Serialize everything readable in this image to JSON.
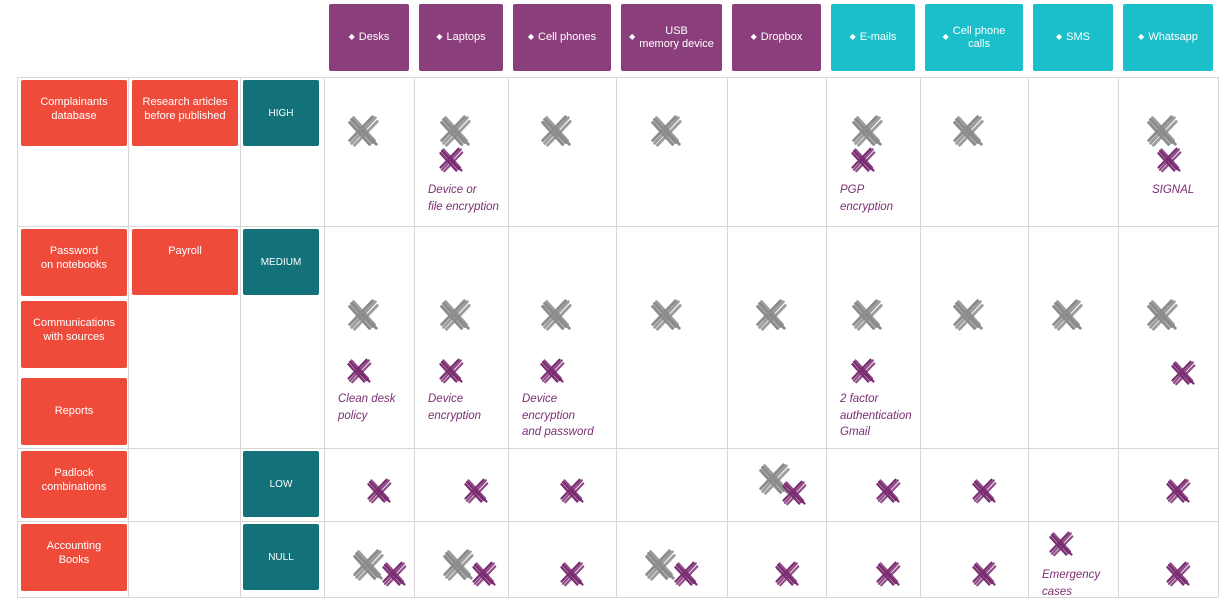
{
  "columns": [
    {
      "id": "desks",
      "label": "Desks",
      "group": "physical"
    },
    {
      "id": "laptops",
      "label": "Laptops",
      "group": "physical"
    },
    {
      "id": "cellphones",
      "label": "Cell phones",
      "group": "physical"
    },
    {
      "id": "usb",
      "label": "USB\nmemory device",
      "group": "physical"
    },
    {
      "id": "dropbox",
      "label": "Dropbox",
      "group": "physical"
    },
    {
      "id": "emails",
      "label": "E-mails",
      "group": "digital"
    },
    {
      "id": "calls",
      "label": "Cell phone\ncalls",
      "group": "digital"
    },
    {
      "id": "sms",
      "label": "SMS",
      "group": "digital"
    },
    {
      "id": "whatsapp",
      "label": "Whatsapp",
      "group": "digital"
    }
  ],
  "rows": [
    {
      "id": "high",
      "level": "HIGH",
      "assets": [
        "Complainants\ndatabase"
      ],
      "secondary": "Research articles\nbefore published"
    },
    {
      "id": "medium",
      "level": "MEDIUM",
      "assets": [
        "Password\non notebooks",
        "Communications\nwith sources",
        "Reports"
      ],
      "secondary": "Payroll"
    },
    {
      "id": "low",
      "level": "LOW",
      "assets": [
        "Padlock\ncombinations"
      ],
      "secondary": ""
    },
    {
      "id": "null",
      "level": "NULL",
      "assets": [
        "Accounting\nBooks"
      ],
      "secondary": ""
    }
  ],
  "matrix": {
    "high": {
      "desks": {
        "risk": true
      },
      "laptops": {
        "risk": true,
        "mitigation": true,
        "note": "Device or\nfile encryption"
      },
      "cellphones": {
        "risk": true
      },
      "usb": {
        "risk": true
      },
      "emails": {
        "risk": true,
        "mitigation": true,
        "note": "PGP\nencryption"
      },
      "calls": {
        "risk": true
      },
      "whatsapp": {
        "risk": true,
        "mitigation": true,
        "note": "SIGNAL"
      }
    },
    "medium": {
      "desks": {
        "risk": true,
        "mitigation": true,
        "note": "Clean desk\npolicy"
      },
      "laptops": {
        "risk": true,
        "mitigation": true,
        "note": "Device\nencryption"
      },
      "cellphones": {
        "risk": true,
        "mitigation": true,
        "note": "Device\nencryption\nand password"
      },
      "usb": {
        "risk": true
      },
      "dropbox": {
        "risk": true
      },
      "emails": {
        "risk": true,
        "mitigation": true,
        "note": "2 factor\nauthentication\nGmail"
      },
      "calls": {
        "risk": true
      },
      "sms": {
        "risk": true
      },
      "whatsapp": {
        "risk": true,
        "mitigation": true
      }
    },
    "low": {
      "desks": {
        "mitigation": true
      },
      "laptops": {
        "mitigation": true
      },
      "cellphones": {
        "mitigation": true
      },
      "dropbox": {
        "risk": true,
        "mitigation": true
      },
      "emails": {
        "mitigation": true
      },
      "calls": {
        "mitigation": true
      },
      "whatsapp": {
        "mitigation": true
      }
    },
    "null": {
      "desks": {
        "risk": true,
        "mitigation": true
      },
      "laptops": {
        "risk": true,
        "mitigation": true
      },
      "cellphones": {
        "mitigation": true
      },
      "usb": {
        "risk": true,
        "mitigation": true
      },
      "dropbox": {
        "mitigation": true
      },
      "emails": {
        "mitigation": true
      },
      "calls": {
        "mitigation": true
      },
      "sms": {
        "mitigation": true,
        "note": "Emergency\ncases"
      },
      "whatsapp": {
        "mitigation": true
      }
    }
  },
  "colors": {
    "physical_header": "#8a3f7c",
    "digital_header": "#1bbfca",
    "asset_label": "#ee4b3b",
    "level_badge": "#13717a",
    "risk_mark": "#8c8c8c",
    "mitigation_mark": "#7b2d72"
  },
  "icons": {
    "risk": "gray-cross-icon",
    "mitigation": "purple-cross-icon"
  }
}
